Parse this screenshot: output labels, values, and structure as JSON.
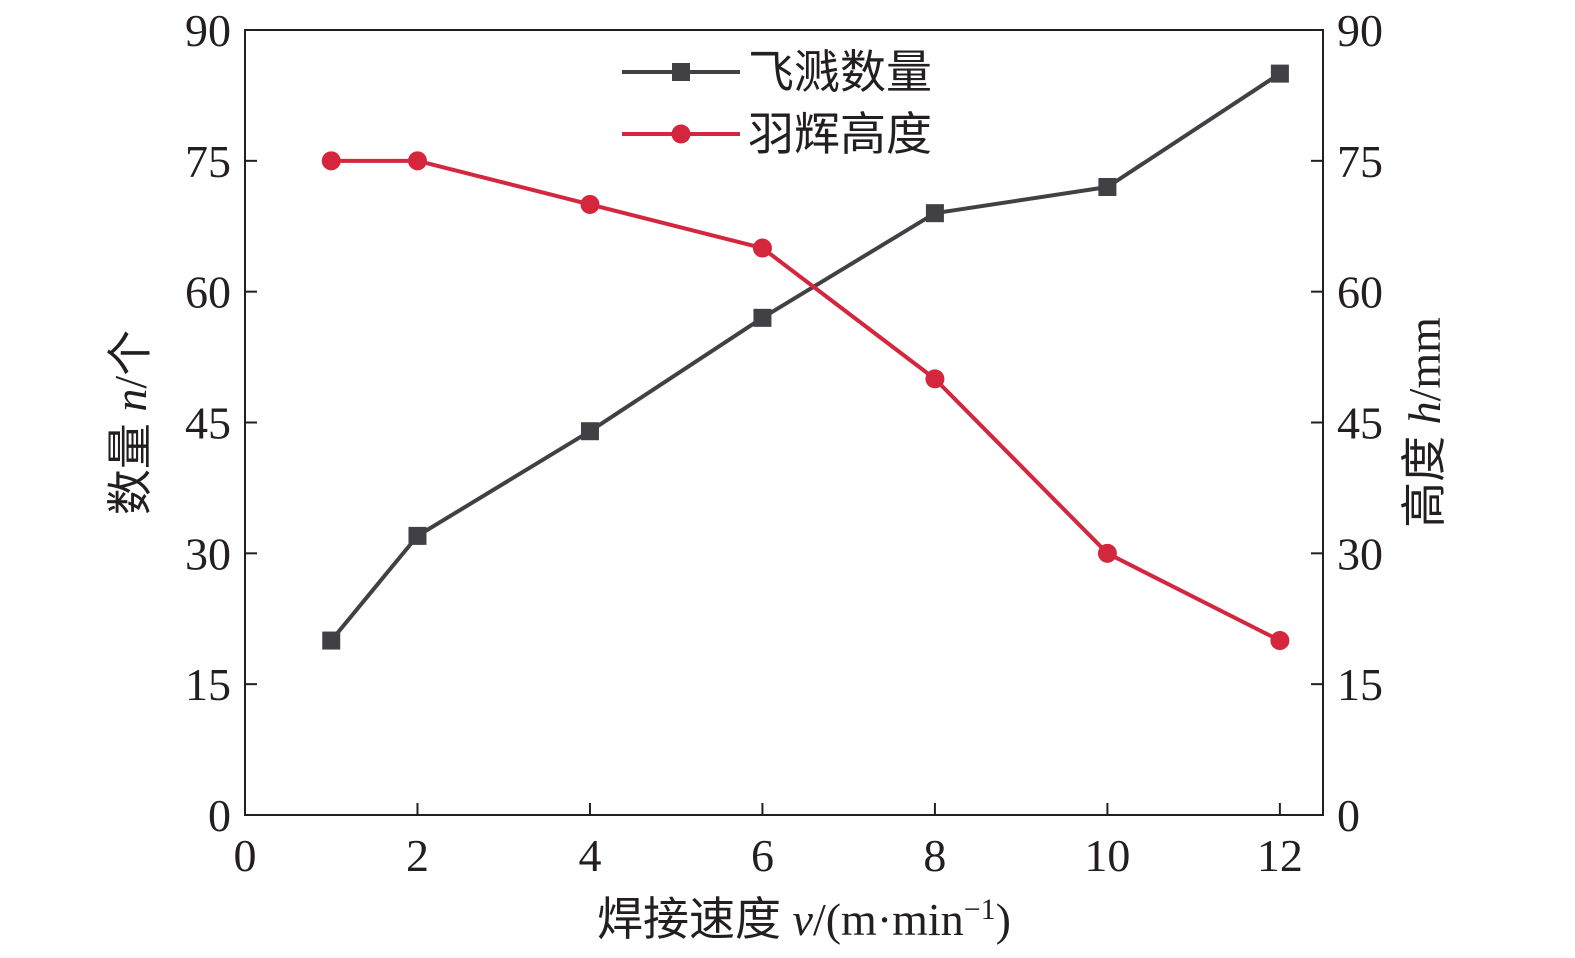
{
  "chart_data": {
    "type": "line",
    "x": [
      1,
      2,
      4,
      6,
      8,
      10,
      12
    ],
    "x_ticks": [
      "0",
      "2",
      "4",
      "6",
      "8",
      "10",
      "12"
    ],
    "x_tick_values": [
      0,
      2,
      4,
      6,
      8,
      10,
      12
    ],
    "xlim": [
      0,
      12.5
    ],
    "xlabel": {
      "main": "焊接速度 ",
      "var": "v",
      "unit_open": "/(m·min",
      "sup": "−1",
      "unit_close": ")"
    },
    "y_left": {
      "label_main": "数量 ",
      "label_var": "n",
      "label_unit": "/个",
      "ticks": [
        "0",
        "15",
        "30",
        "45",
        "60",
        "75",
        "90"
      ],
      "tick_values": [
        0,
        15,
        30,
        45,
        60,
        75,
        90
      ],
      "lim": [
        0,
        90
      ]
    },
    "y_right": {
      "label_main": "高度 ",
      "label_var": "h",
      "label_unit": "/mm",
      "ticks": [
        "0",
        "15",
        "30",
        "45",
        "60",
        "75",
        "90"
      ],
      "tick_values": [
        0,
        15,
        30,
        45,
        60,
        75,
        90
      ],
      "lim": [
        0,
        90
      ]
    },
    "series": [
      {
        "name": "飞溅数量",
        "axis": "left",
        "marker": "square",
        "color": "#414045",
        "values": [
          20,
          32,
          44,
          57,
          69,
          72,
          85
        ]
      },
      {
        "name": "羽辉高度",
        "axis": "right",
        "marker": "circle",
        "color": "#d4263d",
        "values": [
          75,
          75,
          70,
          65,
          50,
          30,
          20
        ]
      }
    ],
    "legend_position": "top-center",
    "grid": false
  }
}
